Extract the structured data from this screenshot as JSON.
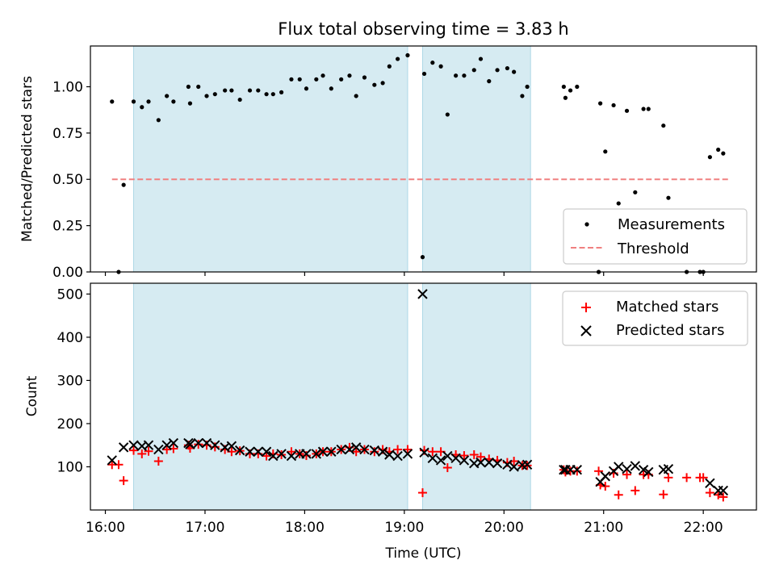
{
  "title": "Flux total observing time = 3.83 h",
  "xlabel": "Time (UTC)",
  "xticks": [
    "16:00",
    "17:00",
    "18:00",
    "19:00",
    "20:00",
    "21:00",
    "22:00"
  ],
  "colors": {
    "span": "#add8e6",
    "measurement": "#000000",
    "threshold": "#f08080",
    "matched": "#ff0000",
    "predicted": "#000000"
  },
  "chart_data": [
    {
      "type": "scatter",
      "ylabel": "Matched/Predicted stars",
      "ylim": [
        0,
        1.22
      ],
      "yticks": [
        "0.00",
        "0.25",
        "0.50",
        "0.75",
        "1.00"
      ],
      "xlim": [
        "15:51",
        "22:32"
      ],
      "legend_position": "lower-right",
      "shaded_spans": [
        [
          "16:17",
          "19:02"
        ],
        [
          "19:11",
          "20:16"
        ]
      ],
      "threshold": {
        "name": "Threshold",
        "value": 0.5,
        "x_range": [
          "16:04",
          "22:16"
        ]
      },
      "series": [
        {
          "name": "Measurements",
          "x": [
            "16:04",
            "16:08",
            "16:11",
            "16:17",
            "16:22",
            "16:26",
            "16:32",
            "16:37",
            "16:41",
            "16:50",
            "16:51",
            "16:56",
            "17:01",
            "17:06",
            "17:12",
            "17:16",
            "17:21",
            "17:27",
            "17:32",
            "17:37",
            "17:41",
            "17:46",
            "17:52",
            "17:57",
            "18:01",
            "18:07",
            "18:11",
            "18:16",
            "18:22",
            "18:27",
            "18:31",
            "18:36",
            "18:42",
            "18:47",
            "18:51",
            "18:56",
            "19:02",
            "19:11",
            "19:12",
            "19:17",
            "19:22",
            "19:26",
            "19:31",
            "19:36",
            "19:42",
            "19:46",
            "19:51",
            "19:56",
            "20:02",
            "20:06",
            "20:11",
            "20:14",
            "20:36",
            "20:37",
            "20:40",
            "20:44",
            "20:57",
            "20:58",
            "21:01",
            "21:06",
            "21:09",
            "21:14",
            "21:19",
            "21:24",
            "21:27",
            "21:36",
            "21:39",
            "21:50",
            "21:58",
            "22:00",
            "22:04",
            "22:09",
            "22:12"
          ],
          "y": [
            0.92,
            0.0,
            0.47,
            0.92,
            0.89,
            0.92,
            0.82,
            0.95,
            0.92,
            1.0,
            0.91,
            1.0,
            0.95,
            0.96,
            0.98,
            0.98,
            0.93,
            0.98,
            0.98,
            0.96,
            0.96,
            0.97,
            1.04,
            1.04,
            0.99,
            1.04,
            1.06,
            0.99,
            1.04,
            1.06,
            0.95,
            1.05,
            1.01,
            1.02,
            1.11,
            1.15,
            1.17,
            0.08,
            1.07,
            1.13,
            1.11,
            0.85,
            1.06,
            1.06,
            1.09,
            1.15,
            1.03,
            1.09,
            1.1,
            1.08,
            0.95,
            1.0,
            1.0,
            0.94,
            0.98,
            1.0,
            0.0,
            0.91,
            0.65,
            0.9,
            0.37,
            0.87,
            0.43,
            0.88,
            0.88,
            0.79,
            0.4,
            0.0,
            0.0,
            0.0,
            0.62,
            0.66,
            0.64
          ]
        }
      ]
    },
    {
      "type": "scatter",
      "ylabel": "Count",
      "ylim": [
        0,
        525
      ],
      "yticks": [
        "100",
        "200",
        "300",
        "400",
        "500"
      ],
      "xlim": [
        "15:51",
        "22:32"
      ],
      "legend_position": "top-right",
      "shaded_spans": [
        [
          "16:17",
          "19:02"
        ],
        [
          "19:11",
          "20:16"
        ]
      ],
      "series": [
        {
          "name": "Matched stars",
          "marker": "+",
          "x": [
            "16:04",
            "16:08",
            "16:11",
            "16:17",
            "16:22",
            "16:26",
            "16:32",
            "16:37",
            "16:41",
            "16:50",
            "16:51",
            "16:56",
            "17:01",
            "17:06",
            "17:12",
            "17:16",
            "17:21",
            "17:27",
            "17:32",
            "17:37",
            "17:41",
            "17:46",
            "17:52",
            "17:57",
            "18:01",
            "18:07",
            "18:11",
            "18:16",
            "18:22",
            "18:27",
            "18:31",
            "18:36",
            "18:42",
            "18:47",
            "18:51",
            "18:56",
            "19:02",
            "19:11",
            "19:12",
            "19:17",
            "19:22",
            "19:26",
            "19:31",
            "19:36",
            "19:42",
            "19:46",
            "19:51",
            "19:56",
            "20:02",
            "20:06",
            "20:11",
            "20:14",
            "20:36",
            "20:37",
            "20:40",
            "20:44",
            "20:57",
            "20:58",
            "21:01",
            "21:06",
            "21:09",
            "21:14",
            "21:19",
            "21:24",
            "21:27",
            "21:36",
            "21:39",
            "21:50",
            "21:58",
            "22:00",
            "22:04",
            "22:09",
            "22:12"
          ],
          "y": [
            105,
            105,
            68,
            138,
            130,
            136,
            113,
            140,
            142,
            150,
            143,
            152,
            150,
            146,
            140,
            135,
            137,
            130,
            130,
            125,
            130,
            128,
            135,
            130,
            126,
            130,
            135,
            135,
            140,
            145,
            135,
            140,
            135,
            140,
            135,
            140,
            140,
            40,
            138,
            135,
            135,
            98,
            128,
            126,
            128,
            123,
            118,
            115,
            110,
            113,
            103,
            103,
            93,
            88,
            90,
            90,
            90,
            58,
            55,
            85,
            35,
            82,
            45,
            82,
            82,
            36,
            75,
            75,
            75,
            75,
            40,
            35,
            30
          ]
        },
        {
          "name": "Predicted stars",
          "marker": "x",
          "x": [
            "16:04",
            "16:11",
            "16:17",
            "16:22",
            "16:26",
            "16:32",
            "16:37",
            "16:41",
            "16:50",
            "16:51",
            "16:56",
            "17:01",
            "17:06",
            "17:12",
            "17:16",
            "17:21",
            "17:27",
            "17:32",
            "17:37",
            "17:41",
            "17:46",
            "17:52",
            "17:57",
            "18:01",
            "18:07",
            "18:11",
            "18:16",
            "18:22",
            "18:27",
            "18:31",
            "18:36",
            "18:42",
            "18:47",
            "18:51",
            "18:56",
            "19:02",
            "19:11",
            "19:12",
            "19:17",
            "19:22",
            "19:26",
            "19:31",
            "19:36",
            "19:42",
            "19:46",
            "19:51",
            "19:56",
            "20:02",
            "20:06",
            "20:11",
            "20:14",
            "20:36",
            "20:37",
            "20:40",
            "20:44",
            "20:58",
            "21:01",
            "21:06",
            "21:09",
            "21:14",
            "21:19",
            "21:24",
            "21:27",
            "21:36",
            "21:39",
            "22:04",
            "22:09",
            "22:12"
          ],
          "y": [
            115,
            145,
            150,
            148,
            150,
            140,
            150,
            155,
            155,
            152,
            155,
            155,
            150,
            145,
            148,
            138,
            135,
            135,
            135,
            125,
            130,
            125,
            130,
            130,
            130,
            135,
            135,
            140,
            140,
            145,
            140,
            138,
            135,
            128,
            125,
            130,
            500,
            133,
            120,
            115,
            125,
            120,
            115,
            108,
            110,
            110,
            108,
            105,
            100,
            104,
            105,
            93,
            93,
            93,
            93,
            65,
            78,
            90,
            100,
            95,
            102,
            93,
            88,
            93,
            95,
            62,
            45,
            45
          ]
        }
      ]
    }
  ]
}
